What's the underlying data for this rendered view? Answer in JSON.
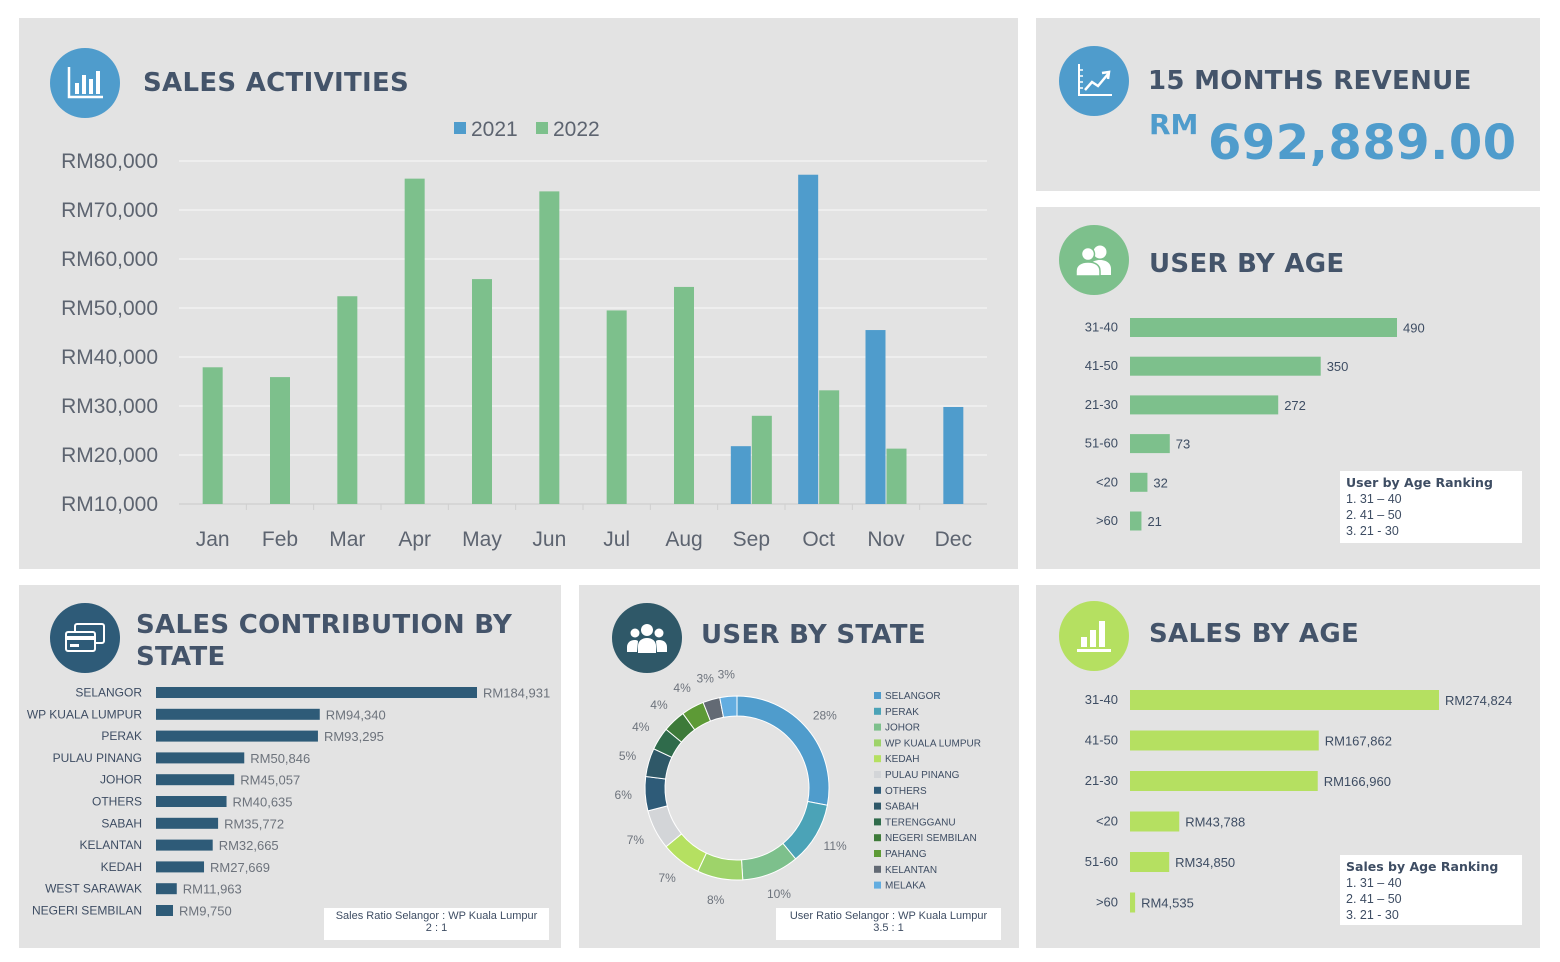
{
  "sales_activities": {
    "title": "SALES ACTIVITIES",
    "icon": "bar-chart-icon",
    "chart_data": {
      "type": "bar",
      "categories": [
        "Jan",
        "Feb",
        "Mar",
        "Apr",
        "May",
        "Jun",
        "Jul",
        "Aug",
        "Sep",
        "Oct",
        "Nov",
        "Dec"
      ],
      "series": [
        {
          "name": "2021",
          "color": "#4f9ccc",
          "values": [
            null,
            null,
            null,
            null,
            null,
            null,
            null,
            null,
            21800,
            77200,
            45500,
            29800
          ]
        },
        {
          "name": "2022",
          "color": "#7dc08c",
          "values": [
            37900,
            35900,
            52400,
            76400,
            55900,
            73800,
            49500,
            54300,
            28000,
            33200,
            21300,
            null
          ]
        }
      ],
      "yticks": [
        "RM80,000",
        "RM70,000",
        "RM60,000",
        "RM50,000",
        "RM40,000",
        "RM30,000",
        "RM20,000",
        "RM10,000"
      ],
      "ylim": [
        10000,
        80000
      ],
      "grid": true,
      "legend": "top-center"
    }
  },
  "revenue": {
    "title": "15 MONTHS REVENUE",
    "currency": "RM",
    "amount": "692,889.00",
    "icon": "line-chart-icon"
  },
  "user_by_age": {
    "title": "USER BY AGE",
    "icon": "users-icon",
    "chart_data": {
      "type": "bar",
      "orientation": "horizontal",
      "color": "#7dc08c",
      "categories": [
        "31-40",
        "41-50",
        "21-30",
        "51-60",
        "<20",
        ">60"
      ],
      "values": [
        490,
        350,
        272,
        73,
        32,
        21
      ],
      "labels": [
        "490",
        "350",
        "272",
        "73",
        "32",
        "21"
      ]
    },
    "ranking": {
      "title": "User by Age Ranking",
      "items": [
        "1.  31 – 40",
        "2.  41 – 50",
        "3.  21 - 30"
      ]
    }
  },
  "sales_by_state": {
    "title_line1": "SALES CONTRIBUTION  BY",
    "title_line2": "STATE",
    "icon": "credit-card-icon",
    "chart_data": {
      "type": "bar",
      "orientation": "horizontal",
      "color": "#2e5b78",
      "categories": [
        "SELANGOR",
        "WP KUALA LUMPUR",
        "PERAK",
        "PULAU PINANG",
        "JOHOR",
        "OTHERS",
        "SABAH",
        "KELANTAN",
        "KEDAH",
        "WEST SARAWAK",
        "NEGERI SEMBILAN"
      ],
      "values": [
        184931,
        94340,
        93295,
        50846,
        45057,
        40635,
        35772,
        32665,
        27669,
        11963,
        9750
      ],
      "labels": [
        "RM184,931",
        "RM94,340",
        "RM93,295",
        "RM50,846",
        "RM45,057",
        "RM40,635",
        "RM35,772",
        "RM32,665",
        "RM27,669",
        "RM11,963",
        "RM9,750"
      ]
    },
    "ratio": {
      "line1": "Sales Ratio Selangor : WP Kuala Lumpur",
      "line2": "2 : 1"
    }
  },
  "user_by_state": {
    "title": "USER BY STATE",
    "icon": "group-icon",
    "chart_data": {
      "type": "pie",
      "donut": true,
      "categories": [
        "SELANGOR",
        "PERAK",
        "JOHOR",
        "WP KUALA LUMPUR",
        "KEDAH",
        "PULAU PINANG",
        "OTHERS",
        "SABAH",
        "TERENGGANU",
        "NEGERI SEMBILAN",
        "PAHANG",
        "KELANTAN",
        "MELAKA"
      ],
      "values": [
        28,
        11,
        10,
        8,
        7,
        7,
        6,
        5,
        4,
        4,
        4,
        3,
        3
      ],
      "labels": [
        "28%",
        "11%",
        "10%",
        "8%",
        "7%",
        "7%",
        "6%",
        "5%",
        "4%",
        "4%",
        "4%",
        "3%",
        "3%"
      ],
      "colors": [
        "#4f9ccc",
        "#4ba3b7",
        "#7dc08c",
        "#9ed36a",
        "#b5e061",
        "#d3d5d8",
        "#2e5b78",
        "#2f5868",
        "#2f6b4b",
        "#3d7a39",
        "#5d9a36",
        "#636a74",
        "#63ade0"
      ],
      "legend": "right"
    },
    "ratio": {
      "line1": "User Ratio Selangor : WP Kuala Lumpur",
      "line2": "3.5 : 1"
    }
  },
  "sales_by_age": {
    "title": "SALES BY AGE",
    "icon": "podium-chart-icon",
    "chart_data": {
      "type": "bar",
      "orientation": "horizontal",
      "color": "#b5e061",
      "categories": [
        "31-40",
        "41-50",
        "21-30",
        "<20",
        "51-60",
        ">60"
      ],
      "values": [
        274824,
        167862,
        166960,
        43788,
        34850,
        4535
      ],
      "labels": [
        "RM274,824",
        "RM167,862",
        "RM166,960",
        "RM43,788",
        "RM34,850",
        "RM4,535"
      ]
    },
    "ranking": {
      "title": "Sales by Age Ranking",
      "items": [
        "1.  31 – 40",
        "2.  41 – 50",
        "3.  21 - 30"
      ]
    }
  }
}
